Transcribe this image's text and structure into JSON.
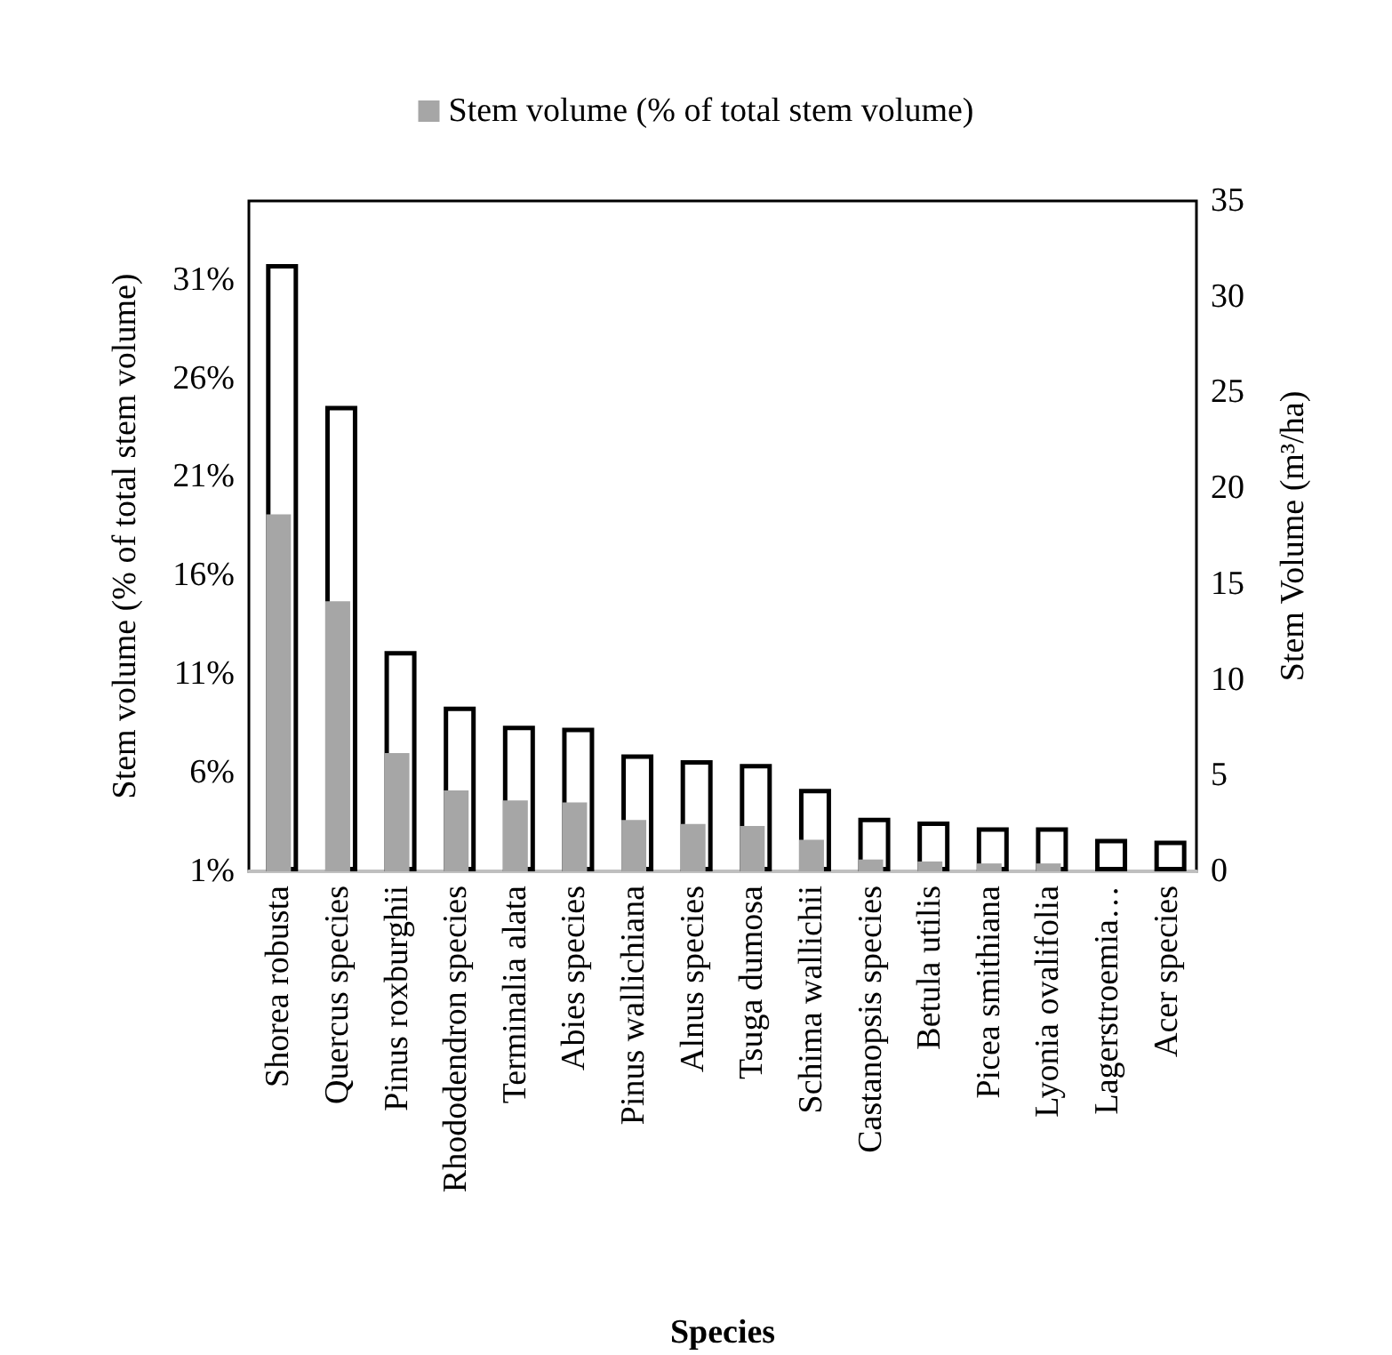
{
  "chart_data": {
    "type": "bar",
    "xlabel": "Species",
    "ylabel": "Stem volume (% of total stem volume)",
    "y2label": "Stem Volume (m³/ha)",
    "categories": [
      "Shorea robusta",
      "Quercus species",
      "Pinus roxburghii",
      "Rhododendron species",
      "Terminalia alata",
      "Abies species",
      "Pinus wallichiana",
      "Alnus species",
      "Tsuga dumosa",
      "Schima wallichii",
      "Castanopsis species",
      "Betula utilis",
      "Picea smithiana",
      "Lyonia ovalifolia",
      "Lagerstroemia…",
      "Acer species"
    ],
    "series": [
      {
        "axis": "y2",
        "color": "#ffffff",
        "values": [
          31.7,
          24.3,
          11.5,
          8.6,
          7.6,
          7.5,
          6.1,
          5.8,
          5.6,
          4.3,
          2.8,
          2.6,
          2.3,
          2.3,
          1.7,
          1.6
        ]
      },
      {
        "name": "Stem volume (% of total stem volume)",
        "color": "#a6a6a6",
        "values": [
          19.1,
          14.7,
          7.0,
          5.1,
          4.6,
          4.5,
          3.6,
          3.4,
          3.3,
          2.6,
          1.6,
          1.5,
          1.4,
          1.4,
          1.0,
          1.0
        ]
      }
    ],
    "ylim": [
      1,
      35
    ],
    "yticks": [
      {
        "value": 1,
        "label": "1%"
      },
      {
        "value": 6,
        "label": "6%"
      },
      {
        "value": 11,
        "label": "11%"
      },
      {
        "value": 16,
        "label": "16%"
      },
      {
        "value": 21,
        "label": "21%"
      },
      {
        "value": 26,
        "label": "26%"
      },
      {
        "value": 31,
        "label": "31%"
      }
    ],
    "y2lim": [
      0,
      35
    ],
    "y2ticks": [
      0,
      5,
      10,
      15,
      20,
      25,
      30,
      35
    ],
    "legend": "top",
    "grid": false
  }
}
